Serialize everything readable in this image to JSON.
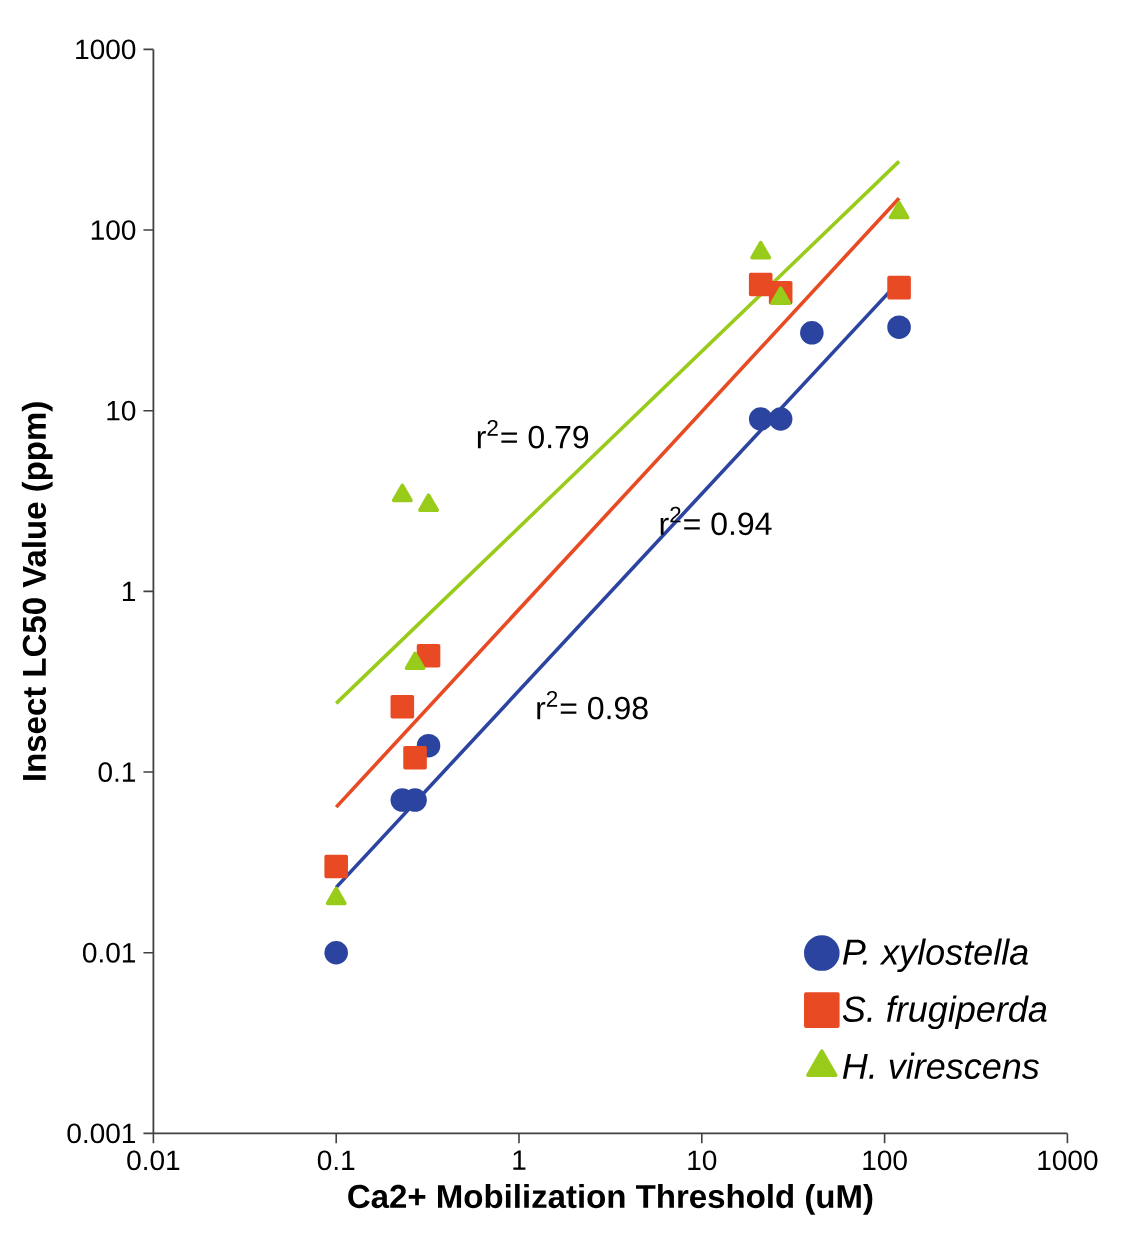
{
  "chart_data": {
    "type": "scatter",
    "xlabel": "Ca2+ Mobilization Threshold (uM)",
    "ylabel": "Insect LC50 Value (ppm)",
    "log": "xy",
    "xlim": [
      0.01,
      1000
    ],
    "ylim": [
      0.001,
      1000
    ],
    "xticks": [
      0.01,
      0.1,
      1,
      10,
      100,
      1000
    ],
    "yticks": [
      0.001,
      0.01,
      0.1,
      1,
      10,
      100,
      1000
    ],
    "legend": "bottom right",
    "series": [
      {
        "type": "line",
        "color": "#2b44a0",
        "marker": "none",
        "x": [
          0.1,
          120
        ],
        "values": [
          0.023,
          52
        ]
      },
      {
        "type": "line",
        "color": "#e84a23",
        "marker": "none",
        "x": [
          0.1,
          120
        ],
        "values": [
          0.064,
          150
        ]
      },
      {
        "type": "line",
        "color": "#99cc1a",
        "marker": "none",
        "x": [
          0.1,
          120
        ],
        "values": [
          0.24,
          240
        ]
      },
      {
        "name": "P. xylostella",
        "color": "#2b44a0",
        "marker": "circle",
        "x": [
          0.1,
          0.23,
          0.27,
          0.32,
          21,
          27,
          40,
          120
        ],
        "values": [
          0.01,
          0.07,
          0.07,
          0.14,
          9,
          9,
          27,
          29
        ]
      },
      {
        "name": "S. frugiperda",
        "color": "#e84a23",
        "marker": "square",
        "x": [
          0.1,
          0.23,
          0.27,
          0.32,
          21,
          27,
          120
        ],
        "values": [
          0.03,
          0.23,
          0.12,
          0.44,
          50,
          45,
          48
        ]
      },
      {
        "name": "H. virescens",
        "color": "#99cc1a",
        "marker": "triangle",
        "x": [
          0.1,
          0.23,
          0.27,
          0.32,
          21,
          27,
          120
        ],
        "values": [
          0.02,
          3.4,
          0.4,
          3,
          75,
          42,
          125
        ]
      }
    ],
    "annotations": [
      "r$^{2}$= 0.79",
      "r$^{2}$= 0.94",
      "r$^{2}$= 0.98"
    ]
  }
}
